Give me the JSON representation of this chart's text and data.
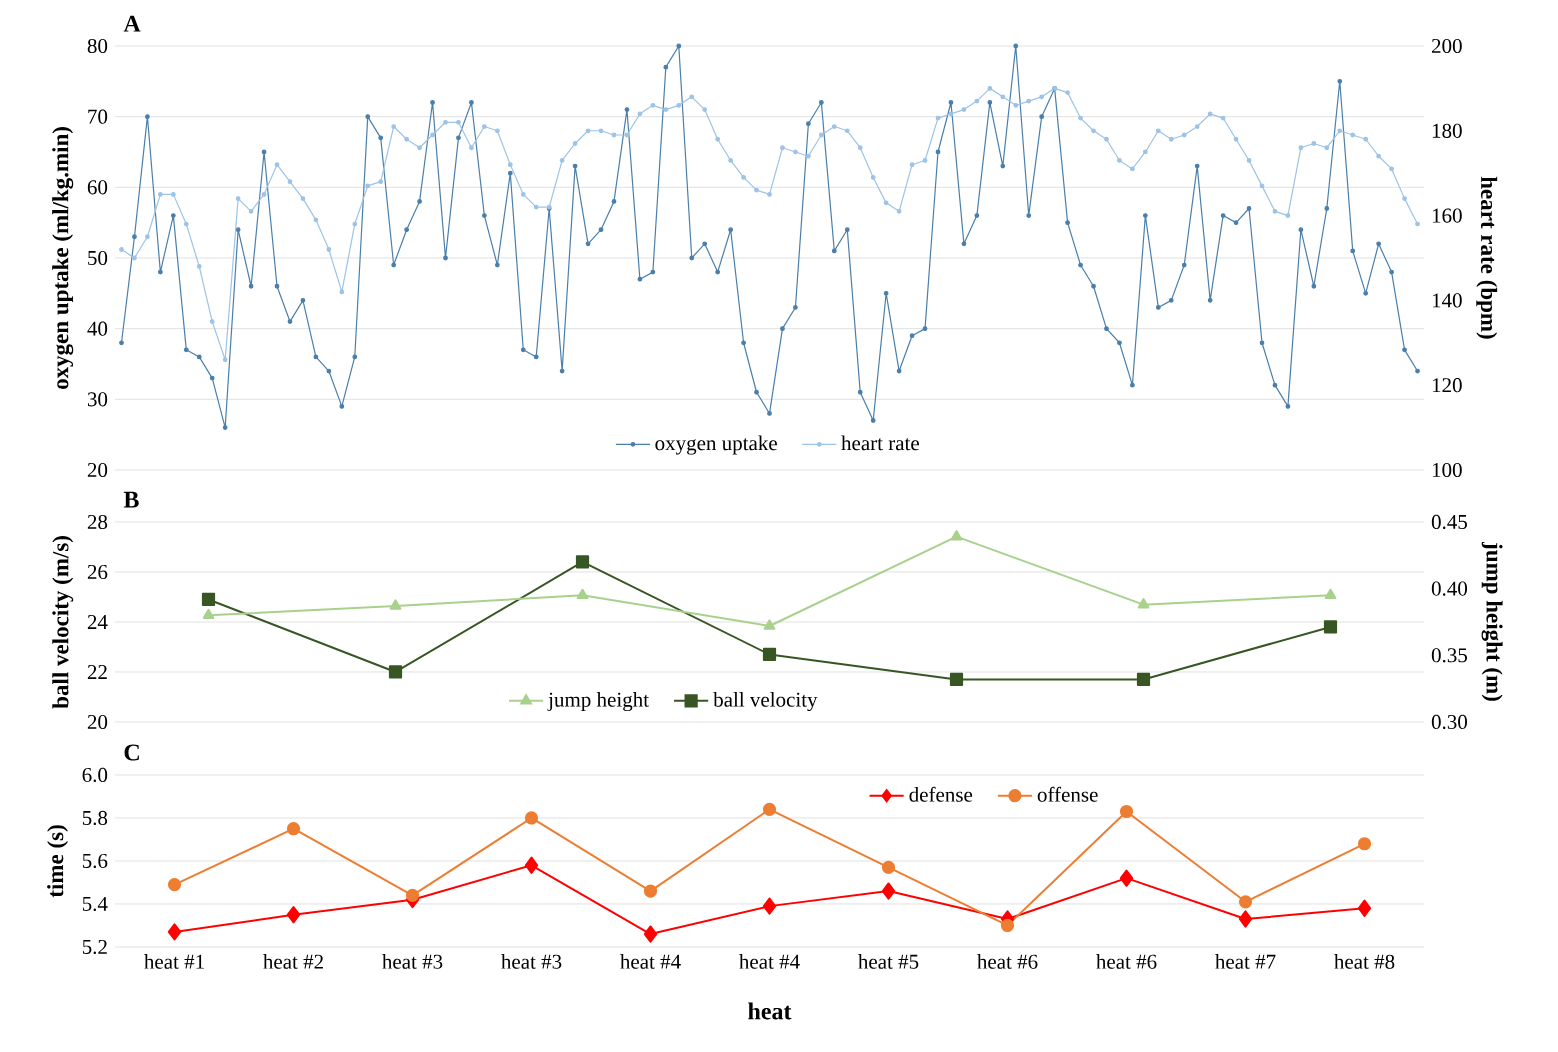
{
  "chart_data": [
    {
      "type": "line",
      "title": "A",
      "ylabel": "oxygen uptake (ml/kg.min)",
      "y2label": "heart rate (bpm)",
      "categories": [
        null,
        null,
        null,
        null,
        null,
        null,
        null,
        null,
        null,
        null,
        null,
        null,
        null,
        null,
        null,
        null,
        null,
        null,
        null,
        null,
        null,
        null,
        null,
        null,
        null,
        null,
        null,
        null,
        null,
        null,
        null,
        null,
        null,
        null,
        null,
        null,
        null,
        null,
        null,
        null,
        null,
        null,
        null,
        null,
        null,
        null,
        null,
        null,
        null,
        null,
        null,
        null,
        null,
        null,
        null,
        null,
        null,
        null,
        null,
        null,
        null,
        null,
        null,
        null,
        null,
        null,
        null,
        null,
        null,
        null,
        null,
        null,
        null,
        null,
        null,
        null,
        null,
        null,
        null,
        null,
        null,
        null,
        null,
        null,
        null,
        null,
        null,
        null,
        null,
        null,
        null,
        null,
        null,
        null,
        null,
        null,
        null,
        null,
        null,
        null,
        null
      ],
      "ylim": [
        20,
        80
      ],
      "yticks": [
        20,
        30,
        40,
        50,
        60,
        70,
        80
      ],
      "y2lim": [
        100,
        200
      ],
      "y2ticks": [
        100,
        120,
        140,
        160,
        180,
        200
      ],
      "grid": "y",
      "legend": "bottom",
      "tick_labels": "y",
      "series": [
        {
          "name": "oxygen uptake",
          "color": "#4a7fab",
          "marker": "circle",
          "values": [
            38,
            53,
            70,
            48,
            56,
            37,
            36,
            33,
            26,
            54,
            46,
            65,
            46,
            41,
            44,
            36,
            34,
            29,
            36,
            70,
            67,
            49,
            54,
            58,
            72,
            50,
            67,
            72,
            56,
            49,
            62,
            37,
            36,
            57,
            34,
            63,
            52,
            54,
            58,
            71,
            47,
            48,
            77,
            80,
            50,
            52,
            48,
            54,
            38,
            31,
            28,
            40,
            43,
            69,
            72,
            51,
            54,
            31,
            27,
            45,
            34,
            39,
            40,
            65,
            72,
            52,
            56,
            72,
            63,
            80,
            56,
            70,
            74,
            55,
            49,
            46,
            40,
            38,
            32,
            56,
            43,
            44,
            49,
            63,
            44,
            56,
            55,
            57,
            38,
            32,
            29,
            54,
            46,
            57,
            75,
            51,
            45,
            52,
            48,
            37,
            34
          ]
        },
        {
          "name": "heart rate",
          "color": "#9dc3e6",
          "marker": "circle",
          "axis": "y2",
          "values": [
            152,
            150,
            155,
            165,
            165,
            158,
            148,
            135,
            126,
            164,
            161,
            165,
            172,
            168,
            164,
            159,
            152,
            142,
            158,
            167,
            168,
            181,
            178,
            176,
            179,
            182,
            182,
            176,
            181,
            180,
            172,
            165,
            162,
            162,
            173,
            177,
            180,
            180,
            179,
            179,
            184,
            186,
            185,
            186,
            188,
            185,
            178,
            173,
            169,
            166,
            165,
            176,
            175,
            174,
            179,
            181,
            180,
            176,
            169,
            163,
            161,
            172,
            173,
            183,
            184,
            185,
            187,
            190,
            188,
            186,
            187,
            188,
            190,
            189,
            183,
            180,
            178,
            173,
            171,
            175,
            180,
            178,
            179,
            181,
            184,
            183,
            178,
            173,
            167,
            161,
            160,
            176,
            177,
            176,
            180,
            179,
            178,
            174,
            171,
            164,
            158
          ]
        }
      ]
    },
    {
      "type": "line",
      "title": "B",
      "ylabel": "ball velocity (m/s)",
      "y2label": "jump height (m)",
      "categories": [
        null,
        null,
        null,
        null,
        null,
        null,
        null
      ],
      "ylim": [
        20,
        28
      ],
      "yticks": [
        20,
        22,
        24,
        26,
        28
      ],
      "y2lim": [
        0.3,
        0.45
      ],
      "y2ticks": [
        {
          "value": 0.3,
          "label": "0.30"
        },
        {
          "value": 0.35,
          "label": "0.35"
        },
        {
          "value": 0.4,
          "label": "0.40"
        },
        {
          "value": 0.45,
          "label": "0.45"
        }
      ],
      "grid": "y",
      "legend": "bottom",
      "tick_labels": "y",
      "series": [
        {
          "name": "jump height",
          "color": "#a9d18e",
          "marker": "triangle",
          "axis": "y2",
          "values": [
            0.38,
            0.387,
            0.395,
            0.372,
            0.439,
            0.388,
            0.395
          ]
        },
        {
          "name": "ball velocity",
          "color": "#375623",
          "marker": "square",
          "values": [
            24.9,
            22.0,
            26.4,
            22.7,
            21.7,
            21.7,
            23.8
          ]
        }
      ]
    },
    {
      "type": "line",
      "title": "C",
      "xlabel": "heat",
      "ylabel": "time (s)",
      "categories": [
        "heat #1",
        "heat #2",
        "heat #3",
        "heat #3",
        "heat #4",
        "heat #4",
        "heat #5",
        "heat #6",
        "heat #6",
        "heat #7",
        "heat #8"
      ],
      "ylim": [
        5.2,
        6.0
      ],
      "yticks": [
        {
          "value": 5.2,
          "label": "5.2"
        },
        {
          "value": 5.4,
          "label": "5.4"
        },
        {
          "value": 5.6,
          "label": "5.6"
        },
        {
          "value": 5.8,
          "label": "5.8"
        },
        {
          "value": 6.0,
          "label": "6.0"
        }
      ],
      "grid": "y",
      "legend": "top",
      "series": [
        {
          "name": "defense",
          "color": "#ff0000",
          "marker": "diamond",
          "values": [
            5.27,
            5.35,
            5.42,
            5.58,
            5.26,
            5.39,
            5.46,
            5.33,
            5.52,
            5.33,
            5.38
          ]
        },
        {
          "name": "offense",
          "color": "#ed7d31",
          "marker": "circle",
          "values": [
            5.49,
            5.75,
            5.44,
            5.8,
            5.46,
            5.84,
            5.57,
            5.3,
            5.83,
            5.41,
            5.68
          ]
        }
      ]
    }
  ]
}
